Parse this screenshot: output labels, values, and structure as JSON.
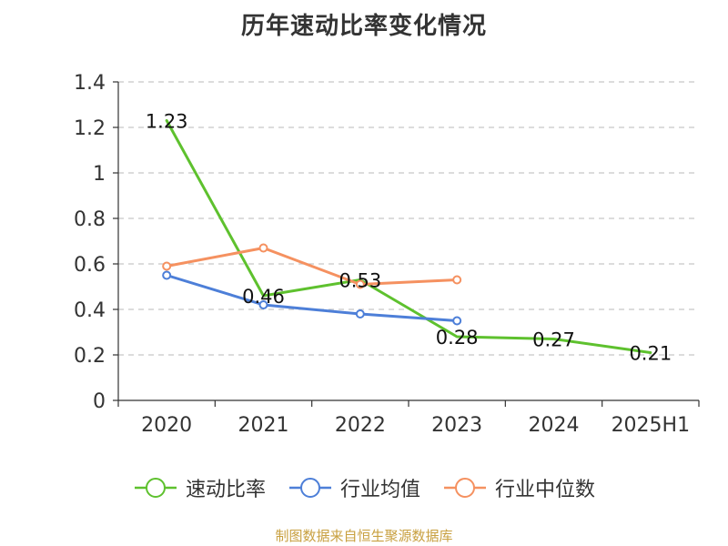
{
  "chart_data": {
    "type": "line",
    "title": "历年速动比率变化情况",
    "categories": [
      "2020",
      "2021",
      "2022",
      "2023",
      "2024",
      "2025H1"
    ],
    "ylim": [
      0,
      1.4
    ],
    "yticks": [
      0,
      0.2,
      0.4,
      0.6,
      0.8,
      1,
      1.2,
      1.4
    ],
    "ytick_labels": [
      "0",
      "0.2",
      "0.4",
      "0.6",
      "0.8",
      "1",
      "1.2",
      "1.4"
    ],
    "grid": true,
    "legend_position": "bottom",
    "series": [
      {
        "name": "速动比率",
        "color": "#5ec12e",
        "values": [
          1.23,
          0.46,
          0.53,
          0.28,
          0.27,
          0.21
        ],
        "labels": [
          "1.23",
          "0.46",
          "0.53",
          "0.28",
          "0.27",
          "0.21"
        ],
        "markers": false
      },
      {
        "name": "行业均值",
        "color": "#4d7fd8",
        "values": [
          0.55,
          0.42,
          0.38,
          0.35,
          null,
          null
        ],
        "markers": true
      },
      {
        "name": "行业中位数",
        "color": "#f59160",
        "values": [
          0.59,
          0.67,
          0.51,
          0.53,
          null,
          null
        ],
        "markers": true
      }
    ]
  },
  "footer": "制图数据来自恒生聚源数据库"
}
